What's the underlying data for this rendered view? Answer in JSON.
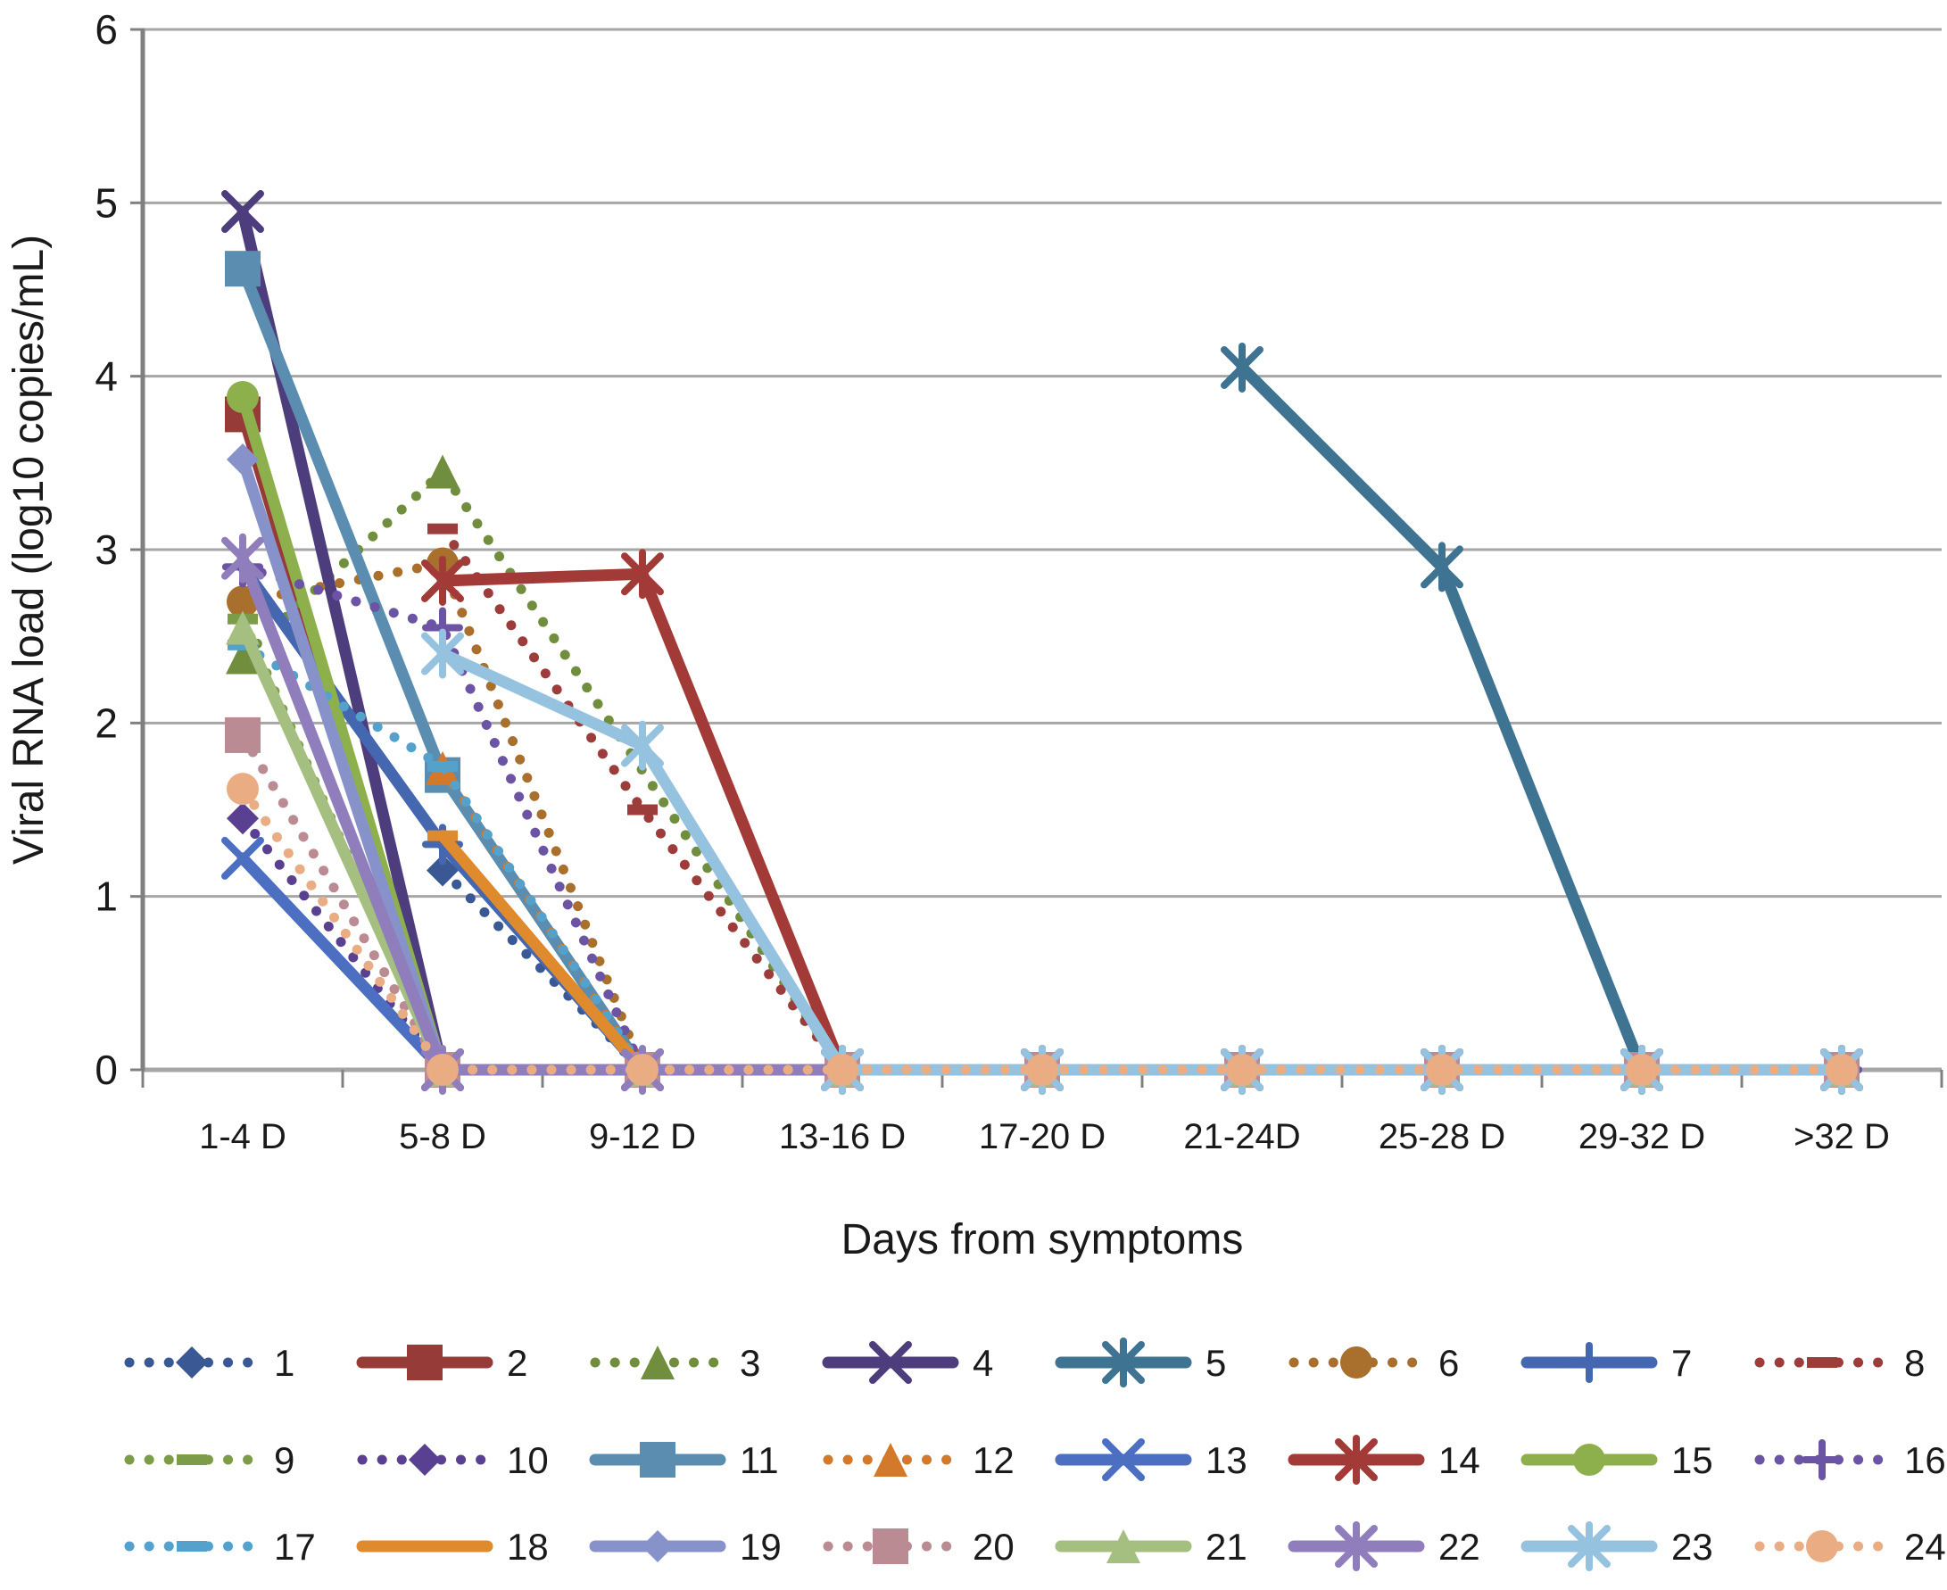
{
  "figure": {
    "description": "Line chart of viral RNA load by day range from symptom onset for 24 numbered patients"
  },
  "chart_data": {
    "type": "line",
    "title": "",
    "xlabel": "Days from symptoms",
    "ylabel": "Viral RNA load (log10 copies/mL)",
    "categories": [
      "1-4 D",
      "5-8 D",
      "9-12 D",
      "13-16 D",
      "17-20 D",
      "21-24D",
      "25-28 D",
      "29-32 D",
      ">32 D"
    ],
    "y_ticks": [
      0,
      1,
      2,
      3,
      4,
      5,
      6
    ],
    "ylim": [
      0,
      6
    ],
    "grid": "horizontal",
    "gridline_color": "#a6a6a6",
    "axis_color": "#808080",
    "legend_position": "bottom",
    "legend_rows": [
      [
        "1",
        "2",
        "3",
        "4",
        "5",
        "6",
        "7",
        "8"
      ],
      [
        "9",
        "10",
        "11",
        "12",
        "13",
        "14",
        "15",
        "16"
      ],
      [
        "17",
        "18",
        "19",
        "20",
        "21",
        "22",
        "23",
        "24"
      ]
    ],
    "series": [
      {
        "name": "1",
        "color": "#3a5894",
        "line": "dotted",
        "marker": "diamond",
        "values": [
          null,
          1.15,
          0,
          0,
          0,
          0,
          0,
          0,
          0
        ]
      },
      {
        "name": "2",
        "color": "#973b38",
        "line": "solid",
        "marker": "square",
        "values": [
          3.78,
          0,
          0,
          0,
          0,
          0,
          0,
          0,
          0
        ]
      },
      {
        "name": "3",
        "color": "#708e3d",
        "line": "dotted",
        "marker": "triangle",
        "values": [
          2.38,
          3.45,
          null,
          0,
          0,
          0,
          0,
          0,
          0
        ]
      },
      {
        "name": "4",
        "color": "#4e3d7c",
        "line": "solid",
        "marker": "x",
        "values": [
          4.95,
          0,
          0,
          0,
          0,
          0,
          0,
          0,
          0
        ]
      },
      {
        "name": "5",
        "color": "#3e7392",
        "line": "solid",
        "marker": "asterisk",
        "values": [
          null,
          null,
          null,
          null,
          null,
          4.05,
          2.9,
          0,
          0
        ]
      },
      {
        "name": "6",
        "color": "#a86f2d",
        "line": "dotted",
        "marker": "circle",
        "values": [
          2.7,
          2.92,
          0,
          0,
          0,
          0,
          0,
          0,
          0
        ]
      },
      {
        "name": "7",
        "color": "#4467af",
        "line": "solid",
        "marker": "plus",
        "values": [
          2.9,
          1.3,
          0,
          0,
          0,
          0,
          0,
          0,
          0
        ]
      },
      {
        "name": "8",
        "color": "#9c3d3b",
        "line": "dotted",
        "marker": "dash",
        "values": [
          null,
          3.12,
          1.5,
          0,
          0,
          0,
          0,
          0,
          0
        ]
      },
      {
        "name": "9",
        "color": "#7d9c47",
        "line": "dotted",
        "marker": "dash",
        "values": [
          2.6,
          0,
          0,
          0,
          0,
          0,
          0,
          0,
          0
        ]
      },
      {
        "name": "10",
        "color": "#5a4090",
        "line": "dotted",
        "marker": "diamond",
        "values": [
          1.45,
          0,
          0,
          0,
          0,
          0,
          0,
          0,
          0
        ]
      },
      {
        "name": "11",
        "color": "#5b8db0",
        "line": "solid",
        "marker": "square",
        "values": [
          4.62,
          1.7,
          0,
          0,
          0,
          0,
          0,
          0,
          0
        ]
      },
      {
        "name": "12",
        "color": "#d2792c",
        "line": "dotted",
        "marker": "triangle",
        "values": [
          null,
          1.74,
          0,
          0,
          0,
          0,
          0,
          0,
          0
        ]
      },
      {
        "name": "13",
        "color": "#4c6fc1",
        "line": "solid",
        "marker": "x",
        "values": [
          1.22,
          0,
          0,
          0,
          0,
          0,
          0,
          0,
          0
        ]
      },
      {
        "name": "14",
        "color": "#a23b38",
        "line": "solid",
        "marker": "asterisk",
        "values": [
          null,
          2.82,
          2.86,
          0,
          0,
          0,
          0,
          0,
          0
        ]
      },
      {
        "name": "15",
        "color": "#8db04d",
        "line": "solid",
        "marker": "circle",
        "values": [
          3.88,
          0,
          0,
          0,
          0,
          0,
          0,
          0,
          0
        ]
      },
      {
        "name": "16",
        "color": "#6c54a4",
        "line": "dotted",
        "marker": "plus",
        "values": [
          2.9,
          2.55,
          0,
          0,
          0,
          0,
          0,
          0,
          0
        ]
      },
      {
        "name": "17",
        "color": "#54a2cb",
        "line": "dotted",
        "marker": "dash",
        "values": [
          2.45,
          1.75,
          0,
          0,
          0,
          0,
          0,
          0,
          0
        ]
      },
      {
        "name": "18",
        "color": "#e08a2e",
        "line": "solid",
        "marker": "dash",
        "values": [
          null,
          1.35,
          0,
          0,
          0,
          0,
          0,
          0,
          0
        ]
      },
      {
        "name": "19",
        "color": "#8792cb",
        "line": "solid",
        "marker": "diamond",
        "values": [
          3.52,
          0,
          0,
          0,
          0,
          0,
          0,
          0,
          0
        ]
      },
      {
        "name": "20",
        "color": "#bb8b93",
        "line": "dotted",
        "marker": "square",
        "values": [
          1.93,
          0,
          0,
          0,
          0,
          0,
          0,
          0,
          0
        ]
      },
      {
        "name": "21",
        "color": "#a4bf80",
        "line": "solid",
        "marker": "triangle",
        "values": [
          2.55,
          0,
          0,
          0,
          0,
          0,
          0,
          0,
          0
        ]
      },
      {
        "name": "22",
        "color": "#8f7ebb",
        "line": "solid",
        "marker": "asterisk",
        "values": [
          2.95,
          0,
          0,
          0,
          0,
          0,
          0,
          0,
          0
        ]
      },
      {
        "name": "23",
        "color": "#95c2df",
        "line": "solid",
        "marker": "asterisk",
        "values": [
          null,
          2.4,
          1.87,
          0,
          0,
          0,
          0,
          0,
          0
        ]
      },
      {
        "name": "24",
        "color": "#eaac83",
        "line": "dotted",
        "marker": "circle",
        "values": [
          1.62,
          0,
          0,
          0,
          0,
          0,
          0,
          0,
          0
        ]
      }
    ]
  }
}
